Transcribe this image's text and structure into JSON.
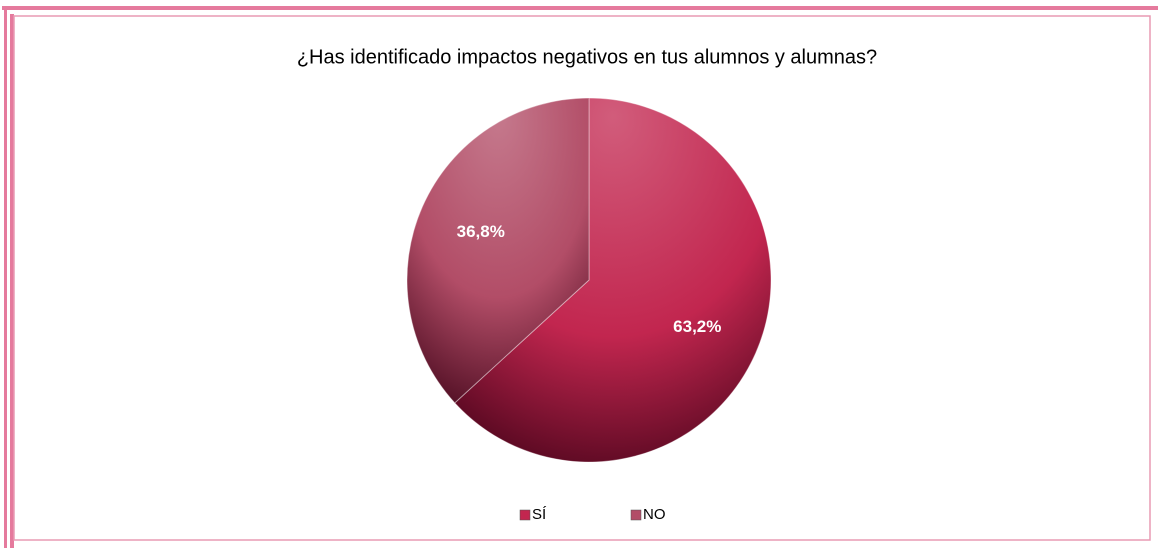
{
  "chart_data": {
    "type": "pie",
    "title": "¿Has identificado impactos negativos en tus alumnos y alumnas?",
    "categories": [
      "SÍ",
      "NO"
    ],
    "values": [
      63.2,
      36.8
    ],
    "value_labels": [
      "63,2%",
      "36,8%"
    ],
    "colors": [
      "#c2264f",
      "#b24d67"
    ],
    "legend": "bottom"
  }
}
